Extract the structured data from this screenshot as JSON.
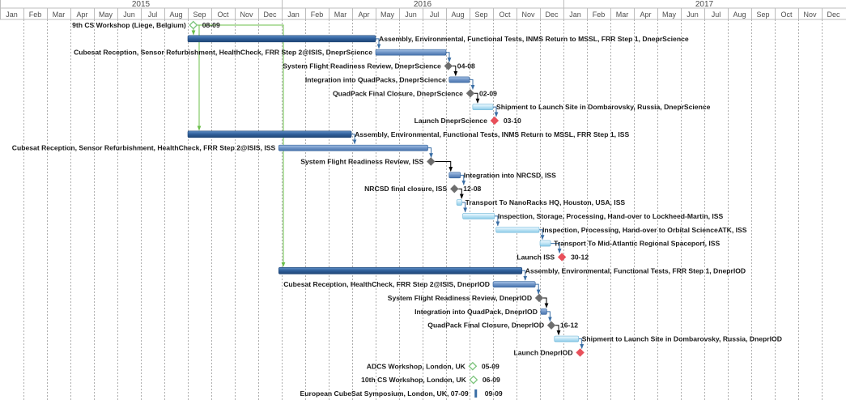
{
  "chart_data": {
    "type": "gantt",
    "years": [
      "2015",
      "2016",
      "2017"
    ],
    "months": [
      "Jan",
      "Feb",
      "Mar",
      "Apr",
      "May",
      "Jun",
      "Jul",
      "Aug",
      "Sep",
      "Oct",
      "Nov",
      "Dec"
    ],
    "tasks": [
      {
        "label": "9th CS Workshop (Liege, Belgium)",
        "type": "milestone",
        "style": "green",
        "start": "2015-09-08",
        "date_label": "08-09",
        "label_side": "left"
      },
      {
        "label": "Assembly, Environmental, Functional Tests, INMS Return to MSSL, FRR Step 1, DneprScience",
        "type": "summary",
        "start": "2015-09-01",
        "end": "2016-05-01",
        "label_side": "right"
      },
      {
        "label": "Cubesat Reception, Sensor Refurbishment, HealthCheck, FRR Step 2@ISIS, DneprScience",
        "type": "task",
        "start": "2016-05-01",
        "end": "2016-08-01",
        "label_side": "left"
      },
      {
        "label": "System Flight Readiness Review, DneprScience",
        "type": "milestone",
        "style": "gray",
        "start": "2016-08-04",
        "date_label": "04-08",
        "label_side": "left"
      },
      {
        "label": "Integration into QuadPacks, DneprScience",
        "type": "task",
        "start": "2016-08-05",
        "end": "2016-09-01",
        "label_side": "left"
      },
      {
        "label": "QuadPack Final Closure, DneprScience",
        "type": "milestone",
        "style": "gray",
        "start": "2016-09-02",
        "date_label": "02-09",
        "label_side": "left"
      },
      {
        "label": "Shipment to Launch Site in Dombarovsky, Russia, DneprScience",
        "type": "task",
        "style": "light",
        "start": "2016-09-05",
        "end": "2016-10-01",
        "label_side": "right"
      },
      {
        "label": "Launch DneprScience",
        "type": "milestone",
        "style": "red",
        "start": "2016-10-03",
        "date_label": "03-10",
        "label_side": "left"
      },
      {
        "label": "Assembly, Environmental, Functional Tests, INMS Return to MSSL, FRR Step 1, ISS",
        "type": "summary",
        "start": "2015-09-01",
        "end": "2016-03-31",
        "label_side": "right"
      },
      {
        "label": "Cubesat Reception, Sensor Refurbishment, HealthCheck, FRR Step 2@ISIS, ISS",
        "type": "task",
        "start": "2015-12-28",
        "end": "2016-07-08",
        "label_side": "left"
      },
      {
        "label": "System Flight Readiness Review, ISS",
        "type": "milestone",
        "style": "gray",
        "start": "2016-07-12",
        "label_side": "left"
      },
      {
        "label": "Integration into NRCSD, ISS",
        "type": "task",
        "start": "2016-08-05",
        "end": "2016-08-20",
        "label_side": "right"
      },
      {
        "label": "NRCSD final closure, ISS",
        "type": "milestone",
        "style": "gray",
        "start": "2016-08-12",
        "date_label": "12-08",
        "label_side": "left"
      },
      {
        "label": "Transport To NanoRacks HQ, Houston, USA, ISS",
        "type": "task",
        "style": "light",
        "start": "2016-08-15",
        "end": "2016-08-22",
        "label_side": "right"
      },
      {
        "label": "Inspection, Storage, Processing, Hand-over to Lockheed-Martin, ISS",
        "type": "task",
        "style": "light",
        "start": "2016-08-23",
        "end": "2016-10-03",
        "label_side": "right"
      },
      {
        "label": "Inspection, Processing, Hand-over to Orbital ScienceATK, ISS",
        "type": "task",
        "style": "light",
        "start": "2016-10-05",
        "end": "2016-11-30",
        "label_side": "right"
      },
      {
        "label": "Transport To Mid-Atlantic Regional Spaceport, ISS",
        "type": "task",
        "style": "light",
        "start": "2016-12-01",
        "end": "2016-12-15",
        "label_side": "right"
      },
      {
        "label": "Launch ISS",
        "type": "milestone",
        "style": "red",
        "start": "2016-12-30",
        "date_label": "30-12",
        "label_side": "left"
      },
      {
        "label": "Assembly, Environmental, Functional Tests, FRR Step 1, DneprIOD",
        "type": "summary",
        "start": "2015-12-28",
        "end": "2016-11-08",
        "label_side": "right"
      },
      {
        "label": "Cubesat Reception, HealthCheck, FRR Step 2@ISIS, DneprIOD",
        "type": "task",
        "start": "2016-10-01",
        "end": "2016-11-25",
        "label_side": "left"
      },
      {
        "label": "System Flight Readiness Review, DneprIOD",
        "type": "milestone",
        "style": "gray",
        "start": "2016-11-30",
        "label_side": "left"
      },
      {
        "label": "Integration into QuadPack, DneprIOD",
        "type": "task",
        "start": "2016-12-02",
        "end": "2016-12-10",
        "label_side": "left"
      },
      {
        "label": "QuadPack Final Closure, DneprIOD",
        "type": "milestone",
        "style": "gray",
        "start": "2016-12-16",
        "date_label": "16-12",
        "label_side": "left"
      },
      {
        "label": "Shipment to Launch Site in Dombarovsky, Russia, DneprIOD",
        "type": "task",
        "style": "light",
        "start": "2016-12-20",
        "end": "2017-01-21",
        "label_side": "right"
      },
      {
        "label": "Launch DneprIOD",
        "type": "milestone",
        "style": "red",
        "start": "2017-01-23",
        "label_side": "left"
      },
      {
        "label": "ADCS Workshop, London, UK",
        "type": "milestone",
        "style": "green",
        "start": "2016-09-05",
        "date_label": "05-09",
        "label_side": "left"
      },
      {
        "label": "10th CS Workshop, London, UK",
        "type": "milestone",
        "style": "green",
        "start": "2016-09-06",
        "date_label": "06-09",
        "label_side": "left"
      },
      {
        "label": "European CubeSat Symposium, London, UK, 07-09",
        "type": "milestone",
        "style": "tick",
        "start": "2016-09-09",
        "date_label": "09-09",
        "label_side": "left"
      }
    ],
    "colors": {
      "summary": "#3a6ea5",
      "task": "#6f95c7",
      "light": "#bfe4f5",
      "milestone_gray": "#6e6e6e",
      "milestone_red": "#e8505b",
      "milestone_green": "#7cc47c",
      "link_green": "#6bbf4a",
      "link_black": "#000000"
    }
  }
}
